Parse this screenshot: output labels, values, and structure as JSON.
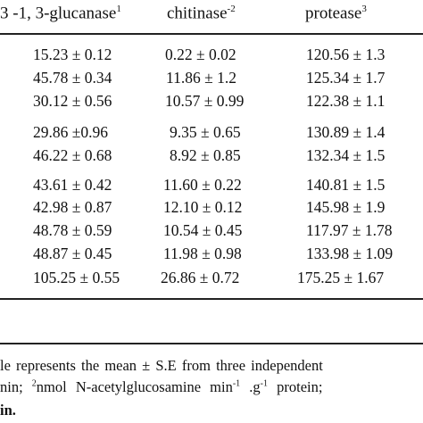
{
  "headers": {
    "col1": "3 -1, 3-glucanase",
    "col1_sup": "1",
    "col2": "chitinase",
    "col2_sup": "-2",
    "col3": "protease",
    "col3_sup": "3"
  },
  "rows": [
    [
      "15.23 ± 0.12",
      "0.22 ± 0.02",
      "120.56 ± 1.3"
    ],
    [
      "45.78 ± 0.34",
      "11.86 ± 1.2",
      "125.34 ± 1.7"
    ],
    [
      "30.12 ± 0.56",
      "10.57 ± 0.99",
      "122.38 ± 1.1"
    ],
    [
      "29.86 ±0.96",
      "9.35 ± 0.65",
      "130.89 ± 1.4"
    ],
    [
      "46.22 ± 0.68",
      "8.92 ± 0.85",
      "132.34 ± 1.5"
    ],
    [
      "43.61 ± 0.42",
      "11.60 ± 0.22",
      "140.81 ± 1.5"
    ],
    [
      "42.98 ± 0.87",
      "12.10 ± 0.12",
      "145.98 ± 1.9"
    ],
    [
      "48.78 ± 0.59",
      "10.54 ± 0.45",
      "117.97 ± 1.78"
    ],
    [
      "48.87 ± 0.45",
      "11.98 ± 0.98",
      "133.98 ± 1.09"
    ],
    [
      "105.25 ± 0.55",
      "26.86 ± 0.72",
      "175.25 ± 1.67"
    ]
  ],
  "footnote": {
    "line1": "le represents the mean ± S.E from three independent",
    "line2_a": "nin; ",
    "line2_sup1": "2",
    "line2_b": "nmol N-acetylglucosamine min",
    "line2_sup2": "-1",
    "line2_c": " .g",
    "line2_sup3": "-1",
    "line2_d": " protein;",
    "line3": "in."
  }
}
